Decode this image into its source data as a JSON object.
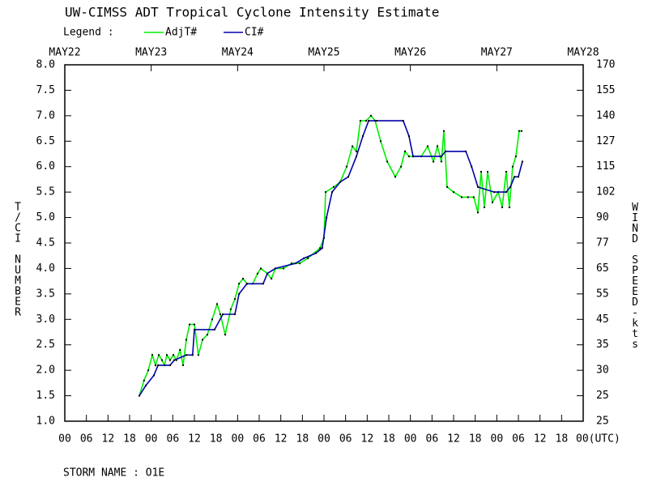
{
  "chart_data": {
    "type": "line",
    "title": "UW-CIMSS ADT Tropical Cyclone Intensity Estimate",
    "legend_title": "Legend :",
    "ylabel": "T/CI NUMBER",
    "y2label": "WIND SPEED-kts",
    "footer": "STORM NAME : O1E",
    "xlim": [
      0,
      144
    ],
    "xticks": [
      {
        "value": 0,
        "label": "00"
      },
      {
        "value": 6,
        "label": "06"
      },
      12,
      18,
      {
        "value": 24,
        "label": "00"
      },
      {
        "value": 30,
        "label": "06"
      },
      {
        "value": 36,
        "label": "12"
      },
      {
        "value": 42,
        "label": "18"
      },
      {
        "value": 48,
        "label": "00"
      },
      {
        "value": 54,
        "label": "06"
      },
      {
        "value": 60,
        "label": "12"
      },
      {
        "value": 66,
        "label": "18"
      },
      {
        "value": 72,
        "label": "00"
      },
      {
        "value": 78,
        "label": "06"
      },
      {
        "value": 84,
        "label": "12"
      },
      {
        "value": 90,
        "label": "18"
      },
      {
        "value": 96,
        "label": "00"
      },
      {
        "value": 102,
        "label": "06"
      },
      {
        "value": 108,
        "label": "12"
      },
      {
        "value": 114,
        "label": "18"
      },
      {
        "value": 120,
        "label": "00"
      },
      {
        "value": 126,
        "label": "06"
      },
      {
        "value": 132,
        "label": "12"
      },
      {
        "value": 138,
        "label": "18"
      },
      {
        "value": 144,
        "label": "00(UTC)"
      }
    ],
    "date_ticks": [
      {
        "value": 0,
        "label": "MAY22"
      },
      {
        "value": 24,
        "label": "MAY23"
      },
      {
        "value": 48,
        "label": "MAY24"
      },
      {
        "value": 72,
        "label": "MAY25"
      },
      {
        "value": 96,
        "label": "MAY26"
      },
      {
        "value": 120,
        "label": "MAY27"
      },
      {
        "value": 144,
        "label": "MAY28"
      }
    ],
    "ylim": [
      1,
      8
    ],
    "yticks": [
      {
        "value": 1,
        "label": "1.0"
      },
      1.5,
      {
        "value": 2,
        "label": "2.0"
      },
      2.5,
      {
        "value": 3,
        "label": "3.0"
      },
      3.5,
      {
        "value": 4,
        "label": "4.0"
      },
      4.5,
      {
        "value": 5,
        "label": "5.0"
      },
      5.5,
      {
        "value": 6,
        "label": "6.0"
      },
      6.5,
      {
        "value": 7,
        "label": "7.0"
      },
      7.5,
      {
        "value": 8,
        "label": "8.0"
      }
    ],
    "y2tick_labels": [
      "25",
      "25",
      "30",
      "35",
      "45",
      "55",
      "65",
      "77",
      "90",
      "102",
      "115",
      "127",
      "140",
      "155",
      "170"
    ],
    "series": [
      {
        "name": "AdjT#",
        "color": "#00ee00",
        "x": [
          20.7,
          22,
          23.2,
          24.3,
          25.2,
          26.1,
          27,
          27.7,
          28.35,
          29.25,
          30.15,
          31,
          32,
          32.85,
          33.75,
          34.65,
          36,
          37.1,
          38.25,
          39.6,
          40.95,
          42.3,
          43.2,
          44.55,
          46.1,
          47.25,
          48.4,
          49.5,
          50.6,
          52.2,
          53.55,
          54.45,
          56.25,
          57.4,
          58.5,
          60.75,
          63,
          65.25,
          67.5,
          70.9,
          72,
          72.45,
          74.7,
          76.5,
          78.3,
          79.9,
          81,
          82.1,
          83.7,
          85.05,
          86.2,
          87.75,
          89.55,
          91.8,
          93.4,
          94.5,
          95.6,
          96.75,
          99,
          100.8,
          102.4,
          103.5,
          104.6,
          105.3,
          106.2,
          108,
          110.25,
          112,
          113.6,
          114.75,
          115.65,
          116.55,
          117.45,
          118.8,
          120.4,
          121.5,
          122.6,
          123.5,
          124.4,
          125.3,
          126.2,
          126.9
        ],
        "values": [
          1.5,
          1.8,
          2.0,
          2.3,
          2.1,
          2.3,
          2.2,
          2.1,
          2.3,
          2.2,
          2.3,
          2.2,
          2.4,
          2.1,
          2.6,
          2.9,
          2.9,
          2.3,
          2.6,
          2.7,
          3.0,
          3.3,
          3.1,
          2.7,
          3.2,
          3.4,
          3.7,
          3.8,
          3.7,
          3.7,
          3.9,
          4.0,
          3.9,
          3.8,
          4.0,
          4.0,
          4.1,
          4.1,
          4.2,
          4.4,
          4.6,
          5.5,
          5.6,
          5.7,
          6.0,
          6.4,
          6.3,
          6.9,
          6.9,
          7.0,
          6.9,
          6.5,
          6.1,
          5.8,
          6.0,
          6.3,
          6.2,
          6.2,
          6.2,
          6.4,
          6.1,
          6.4,
          6.1,
          6.7,
          5.6,
          5.5,
          5.4,
          5.4,
          5.4,
          5.1,
          5.9,
          5.2,
          5.9,
          5.3,
          5.5,
          5.2,
          5.9,
          5.2,
          6.0,
          6.2,
          6.7,
          6.7
        ]
      },
      {
        "name": "CI#",
        "color": "#0000aa",
        "x": [
          20.7,
          22.5,
          24.75,
          25.9,
          29.25,
          30.4,
          33.75,
          35.5,
          36,
          41.6,
          43.9,
          47.25,
          48.4,
          50.6,
          55.1,
          56.25,
          58.5,
          64.1,
          66.4,
          69.75,
          71.5,
          72.7,
          74.25,
          76.5,
          78.75,
          81,
          82.8,
          84.4,
          86.6,
          94,
          95.6,
          96.75,
          104.6,
          105.75,
          111.4,
          113,
          114.75,
          119.25,
          122.6,
          123.75,
          124.9,
          126,
          127.1
        ],
        "values": [
          1.5,
          1.7,
          1.9,
          2.1,
          2.1,
          2.2,
          2.3,
          2.3,
          2.8,
          2.8,
          3.1,
          3.1,
          3.5,
          3.7,
          3.7,
          3.9,
          4.0,
          4.1,
          4.2,
          4.3,
          4.4,
          5.0,
          5.5,
          5.7,
          5.8,
          6.2,
          6.6,
          6.9,
          6.9,
          6.9,
          6.6,
          6.2,
          6.2,
          6.3,
          6.3,
          6.0,
          5.6,
          5.5,
          5.5,
          5.6,
          5.8,
          5.8,
          6.1
        ]
      }
    ]
  }
}
